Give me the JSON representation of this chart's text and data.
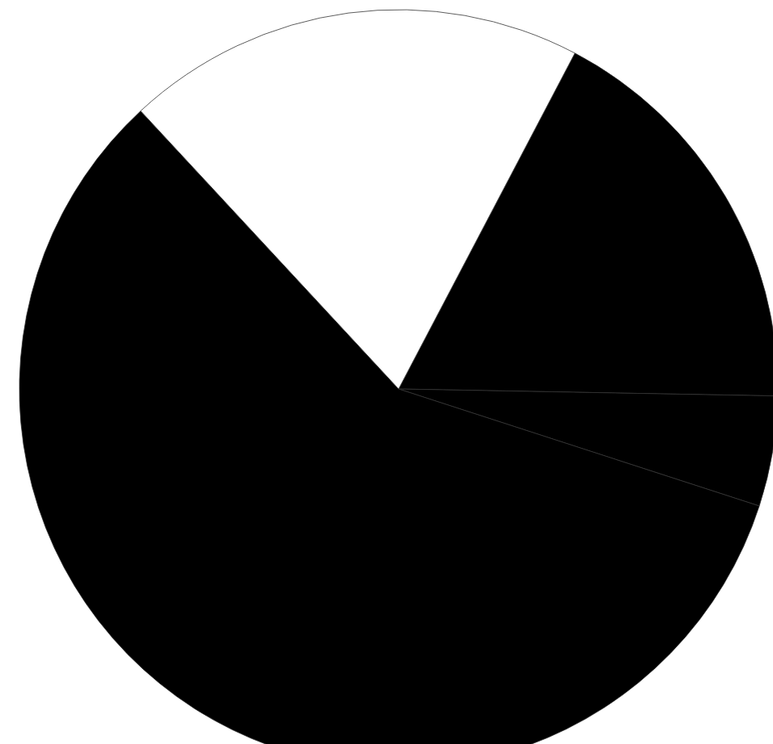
{
  "chart_data": {
    "type": "pie",
    "categories": [
      null,
      null,
      null,
      null
    ],
    "values": [
      17.6,
      4.7,
      58.1,
      19.6
    ],
    "colors": [
      "#000000",
      "#000000",
      "#000000",
      "#ffffff"
    ]
  }
}
